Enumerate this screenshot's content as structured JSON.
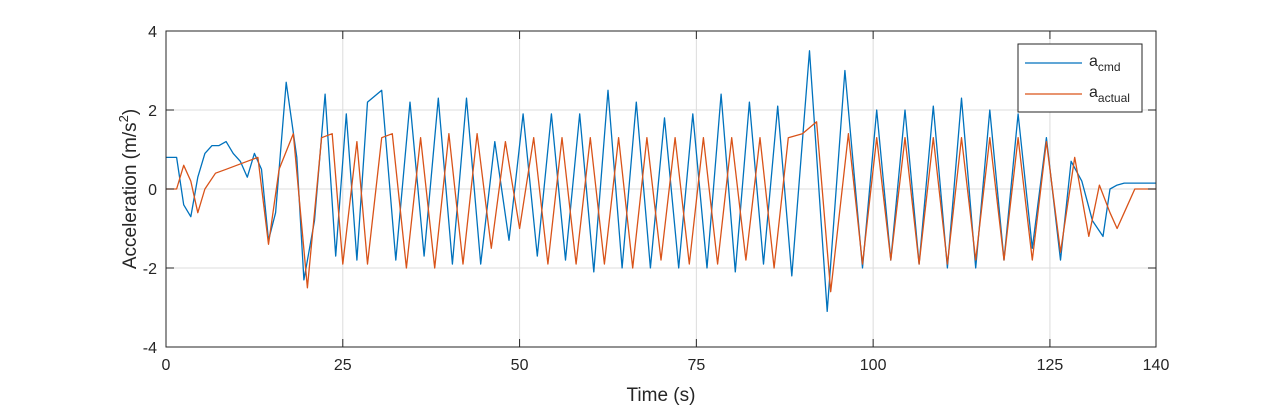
{
  "chart_data": {
    "type": "line",
    "title": "",
    "xlabel": "Time (s)",
    "ylabel_main": "Acceleration (m/s",
    "ylabel_sup": "2",
    "ylabel_tail": ")",
    "xlim": [
      0,
      140
    ],
    "ylim": [
      -4,
      4
    ],
    "xticks": [
      0,
      25,
      50,
      75,
      100,
      125,
      140
    ],
    "yticks": [
      -4,
      -2,
      0,
      2,
      4
    ],
    "grid": true,
    "legend_position": "top-right",
    "series": [
      {
        "name": "a_cmd",
        "label_main": "a",
        "label_sub": "cmd",
        "color": "#0072BD",
        "x": [
          0,
          1.5,
          2.5,
          3.5,
          4.5,
          5.5,
          6.5,
          7.5,
          8.5,
          9.5,
          10.5,
          11.5,
          12.5,
          13.5,
          14.5,
          15.5,
          17,
          18.5,
          19.5,
          21,
          22.5,
          24,
          25.5,
          27,
          28.5,
          30.5,
          32.5,
          34.5,
          36.5,
          38.5,
          40.5,
          42.5,
          44.5,
          46.5,
          48.5,
          50.5,
          52.5,
          54.5,
          56.5,
          58.5,
          60.5,
          62.5,
          64.5,
          66.5,
          68.5,
          70.5,
          72.5,
          74.5,
          76.5,
          78.5,
          80.5,
          82.5,
          84.5,
          86.5,
          88.5,
          91,
          93.5,
          96,
          98.5,
          100.5,
          102.5,
          104.5,
          106.5,
          108.5,
          110.5,
          112.5,
          114.5,
          116.5,
          118.5,
          120.5,
          122.5,
          124.5,
          126.5,
          128,
          129.5,
          131,
          132.5,
          133.5,
          134.5,
          135.5,
          136.5,
          140
        ],
        "y": [
          0.8,
          0.8,
          -0.4,
          -0.7,
          0.3,
          0.9,
          1.1,
          1.1,
          1.2,
          0.9,
          0.7,
          0.3,
          0.9,
          0.5,
          -1.3,
          -0.6,
          2.7,
          0.8,
          -2.3,
          -0.8,
          2.4,
          -1.7,
          1.9,
          -1.8,
          2.2,
          2.5,
          -1.8,
          2.2,
          -1.7,
          2.3,
          -1.9,
          2.3,
          -1.9,
          1.2,
          -1.3,
          1.9,
          -1.7,
          1.9,
          -1.8,
          1.9,
          -2.1,
          2.5,
          -2.0,
          2.2,
          -2.0,
          1.8,
          -2.0,
          1.9,
          -2.0,
          2.4,
          -2.1,
          2.2,
          -1.9,
          2.1,
          -2.2,
          3.5,
          -3.1,
          3.0,
          -2.0,
          2.0,
          -1.8,
          2.0,
          -1.9,
          2.1,
          -2.0,
          2.3,
          -2.0,
          2.0,
          -1.8,
          1.9,
          -1.5,
          1.3,
          -1.8,
          0.7,
          0.2,
          -0.8,
          -1.2,
          0.0,
          0.1,
          0.15,
          0.15,
          0.15
        ]
      },
      {
        "name": "a_actual",
        "label_main": "a",
        "label_sub": "actual",
        "color": "#D95319",
        "x": [
          0,
          1.5,
          2.5,
          3.5,
          4.5,
          5.5,
          7,
          8.5,
          10,
          11.5,
          13,
          14.5,
          16,
          18,
          20,
          22,
          23.5,
          25,
          27,
          28.5,
          30.5,
          32,
          34,
          36,
          38,
          40,
          42,
          44,
          46,
          48,
          50,
          52,
          54,
          56,
          58,
          60,
          62,
          64,
          66,
          68,
          70,
          72,
          74,
          76,
          78,
          80,
          82,
          84,
          86,
          88,
          90,
          92,
          94,
          96.5,
          98.5,
          100.5,
          102.5,
          104.5,
          106.5,
          108.5,
          110.5,
          112.5,
          114.5,
          116.5,
          118.5,
          120.5,
          122.5,
          124.5,
          126.5,
          128.5,
          130.5,
          132,
          133.5,
          134.5,
          135.5,
          137,
          140
        ],
        "y": [
          0,
          0,
          0.6,
          0.2,
          -0.6,
          0,
          0.4,
          0.5,
          0.6,
          0.7,
          0.8,
          -1.4,
          0.5,
          1.4,
          -2.5,
          1.3,
          1.4,
          -1.9,
          1.2,
          -1.9,
          1.3,
          1.4,
          -2.0,
          1.3,
          -2.0,
          1.4,
          -1.9,
          1.4,
          -1.5,
          1.2,
          -1.0,
          1.3,
          -1.9,
          1.3,
          -1.9,
          1.3,
          -1.9,
          1.3,
          -2.0,
          1.3,
          -1.8,
          1.3,
          -1.9,
          1.3,
          -1.9,
          1.3,
          -1.8,
          1.3,
          -2.0,
          1.3,
          1.4,
          1.7,
          -2.6,
          1.4,
          -1.9,
          1.3,
          -1.8,
          1.3,
          -1.9,
          1.3,
          -1.9,
          1.3,
          -1.8,
          1.3,
          -1.8,
          1.3,
          -1.8,
          1.2,
          -1.6,
          0.8,
          -1.2,
          0.1,
          -0.6,
          -1.0,
          -0.6,
          0,
          0
        ]
      }
    ]
  }
}
